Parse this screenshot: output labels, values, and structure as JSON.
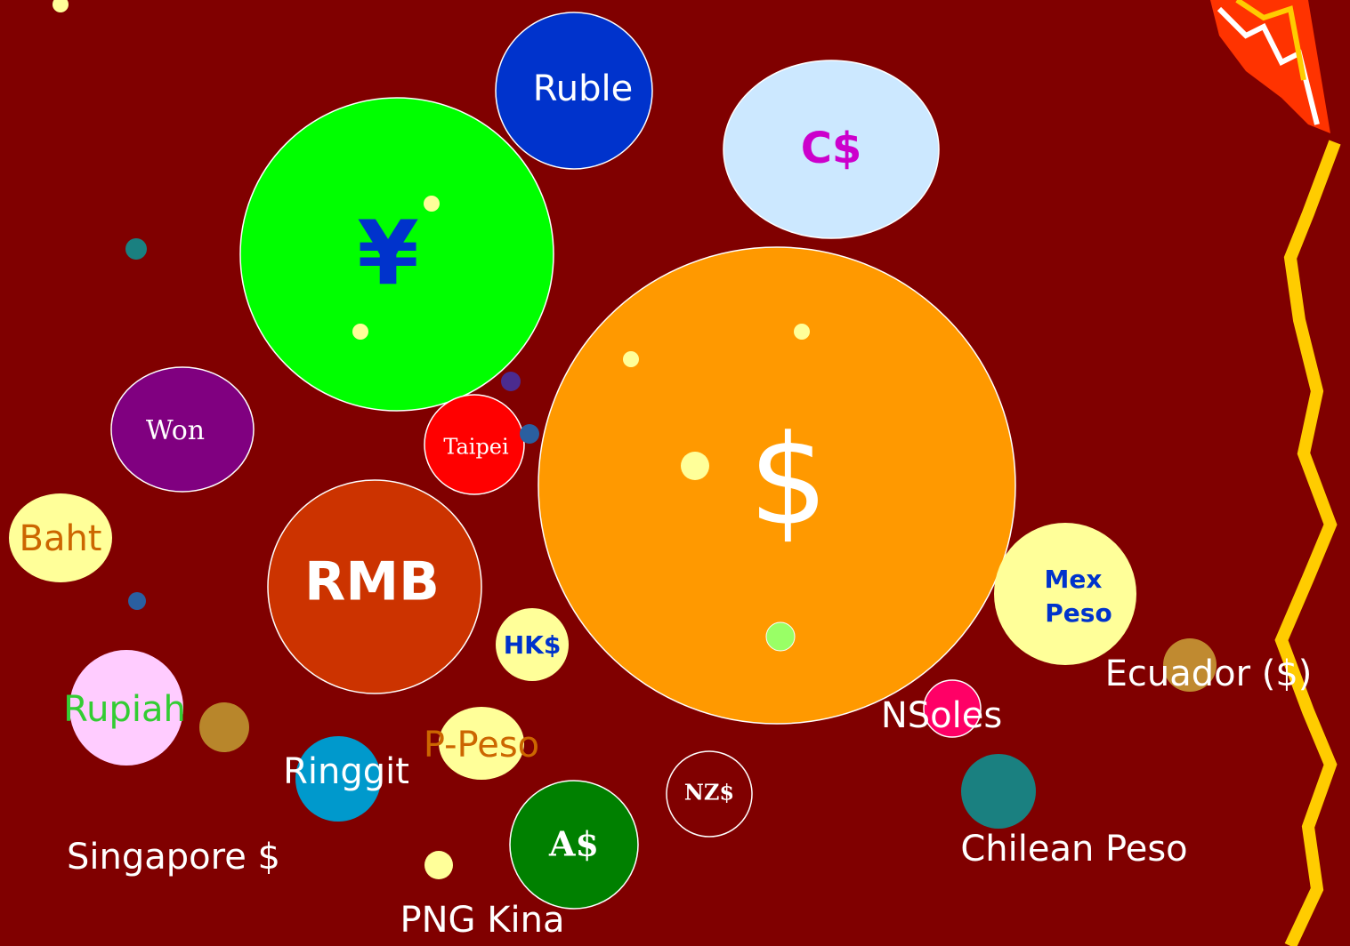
{
  "nodes": [
    {
      "label": "Ruble"
    },
    {
      "label": "C$"
    },
    {
      "label": "¥"
    },
    {
      "label": "$"
    },
    {
      "label": "Won"
    },
    {
      "label": "Taipei"
    },
    {
      "label": "RMB"
    },
    {
      "label": "Baht"
    },
    {
      "lines": [
        "Mex",
        "Peso"
      ]
    },
    {
      "label": "HK$"
    },
    {
      "label": "Rupiah"
    },
    {
      "label": "P-Peso"
    },
    {
      "label": "Ringgit"
    },
    {
      "label": "NSoles"
    },
    {
      "label": "NZ$"
    },
    {
      "label": "A$"
    },
    {
      "label": "Singapore $"
    },
    {
      "label": "PNG Kina"
    },
    {
      "label": "Chilean Peso"
    },
    {
      "label": "Ecuador ($)"
    }
  ]
}
